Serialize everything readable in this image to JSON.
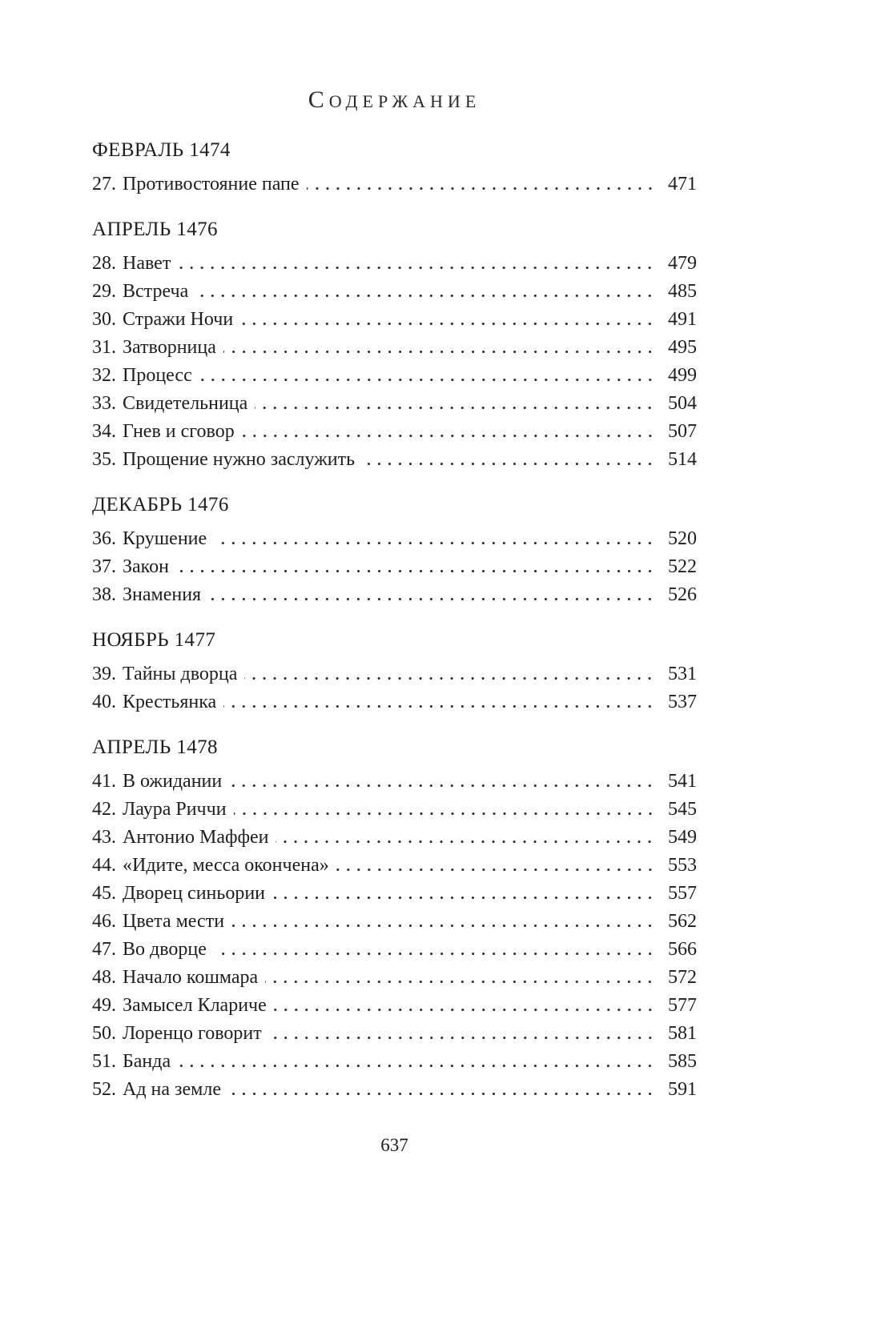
{
  "page": {
    "title": "СОДЕРЖАНИЕ",
    "folio_page_number": "637",
    "text_color": "#1e1e1e",
    "background_color": "#ffffff"
  },
  "toc": {
    "sections": [
      {
        "heading": "ФЕВРАЛЬ 1474",
        "items": [
          {
            "num": "27.",
            "title": "Противостояние папе",
            "page": "471"
          }
        ]
      },
      {
        "heading": "АПРЕЛЬ 1476",
        "items": [
          {
            "num": "28.",
            "title": "Навет",
            "page": "479"
          },
          {
            "num": "29.",
            "title": "Встреча",
            "page": "485"
          },
          {
            "num": "30.",
            "title": "Стражи Ночи",
            "page": "491"
          },
          {
            "num": "31.",
            "title": "Затворница",
            "page": "495"
          },
          {
            "num": "32.",
            "title": "Процесс",
            "page": "499"
          },
          {
            "num": "33.",
            "title": "Свидетельница",
            "page": "504"
          },
          {
            "num": "34.",
            "title": "Гнев и сговор",
            "page": "507"
          },
          {
            "num": "35.",
            "title": "Прощение нужно заслужить",
            "page": "514"
          }
        ]
      },
      {
        "heading": "ДЕКАБРЬ 1476",
        "items": [
          {
            "num": "36.",
            "title": "Крушение",
            "page": "520"
          },
          {
            "num": "37.",
            "title": "Закон",
            "page": "522"
          },
          {
            "num": "38.",
            "title": "Знамения",
            "page": "526"
          }
        ]
      },
      {
        "heading": "НОЯБРЬ 1477",
        "items": [
          {
            "num": "39.",
            "title": "Тайны дворца",
            "page": "531"
          },
          {
            "num": "40.",
            "title": "Крестьянка",
            "page": "537"
          }
        ]
      },
      {
        "heading": "АПРЕЛЬ 1478",
        "items": [
          {
            "num": "41.",
            "title": "В ожидании",
            "page": "541"
          },
          {
            "num": "42.",
            "title": "Лаура Риччи",
            "page": "545"
          },
          {
            "num": "43.",
            "title": "Антонио Маффеи",
            "page": "549"
          },
          {
            "num": "44.",
            "title": "«Идите, месса окончена»",
            "page": "553"
          },
          {
            "num": "45.",
            "title": "Дворец синьории",
            "page": "557"
          },
          {
            "num": "46.",
            "title": "Цвета мести",
            "page": "562"
          },
          {
            "num": "47.",
            "title": "Во дворце",
            "page": "566"
          },
          {
            "num": "48.",
            "title": "Начало кошмара",
            "page": "572"
          },
          {
            "num": "49.",
            "title": "Замысел Клариче",
            "page": "577"
          },
          {
            "num": "50.",
            "title": "Лоренцо говорит",
            "page": "581"
          },
          {
            "num": "51.",
            "title": "Банда",
            "page": "585"
          },
          {
            "num": "52.",
            "title": "Ад на земле",
            "page": "591"
          }
        ]
      }
    ]
  }
}
